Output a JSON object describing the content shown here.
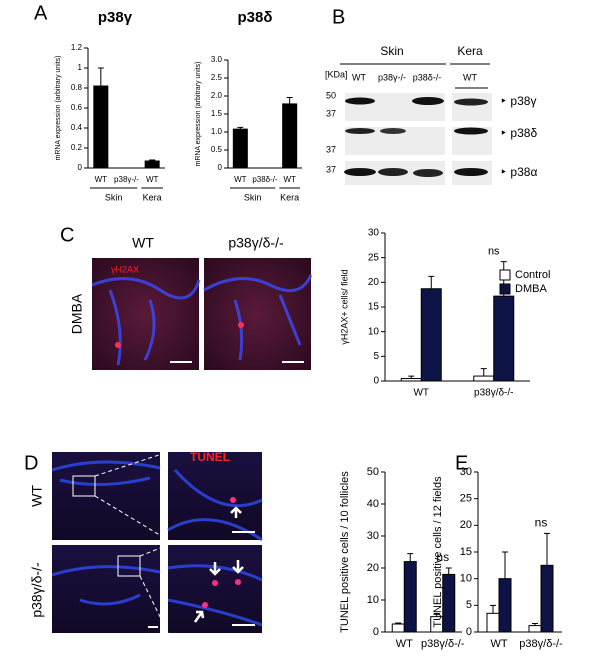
{
  "panels": {
    "a": "A",
    "b": "B",
    "c": "C",
    "d": "D",
    "e": "E"
  },
  "blot": {
    "groups": [
      "Skin",
      "Kera"
    ],
    "lanes": [
      "WT",
      "p38γ-/-",
      "p38δ-/-",
      "WT"
    ],
    "unit": "[KDa]",
    "markers": [
      "50",
      "37",
      "37",
      "37"
    ],
    "proteins": [
      "p38γ",
      "p38δ",
      "p38α"
    ]
  },
  "micrographs_c": {
    "columns": [
      "WT",
      "p38γ/δ-/-"
    ],
    "row": "DMBA",
    "stain": "γH2AX"
  },
  "micrographs_d": {
    "rows": [
      "WT",
      "p38γ/δ-/-"
    ],
    "stain": "TUNEL"
  },
  "chart_data": [
    {
      "type": "bar",
      "title": "p38γ",
      "ylabel": "mRNA expression (arbitrary units)",
      "categories": [
        "WT",
        "p38γ-/-",
        "WT"
      ],
      "group_labels": [
        "Skin",
        "Kera"
      ],
      "values": [
        0.82,
        0,
        0.07
      ],
      "errors": [
        0.18,
        0,
        0.01
      ],
      "color": "#000000",
      "ylim": [
        0,
        1.2
      ],
      "yticks": [
        0,
        0.2,
        0.4,
        0.6,
        0.8,
        1,
        1.2
      ]
    },
    {
      "type": "bar",
      "title": "p38δ",
      "ylabel": "mRNA expression (arbitrary units)",
      "categories": [
        "WT",
        "p38δ-/-",
        "WT"
      ],
      "group_labels": [
        "Skin",
        "Kera"
      ],
      "values": [
        1.08,
        0,
        1.78
      ],
      "errors": [
        0.05,
        0,
        0.18
      ],
      "color": "#000000",
      "ylim": [
        0,
        3
      ],
      "yticks": [
        0,
        0.5,
        {
          "value": 1,
          "label": "1.0"
        },
        1.5,
        {
          "value": 2,
          "label": "2.0"
        },
        2.5,
        {
          "value": 3,
          "label": "3.0"
        }
      ]
    },
    {
      "type": "bar",
      "ylabel": "γH2AX+ cells/ field",
      "categories": [
        "WT",
        "p38γ/δ-/-"
      ],
      "series": [
        {
          "name": "Control",
          "color": "#ffffff",
          "values": [
            0.5,
            1
          ],
          "errors": [
            0.5,
            1.5
          ]
        },
        {
          "name": "DMBA",
          "color": "#0d1445",
          "values": [
            18.7,
            17.2
          ],
          "errors": [
            2.5,
            7
          ]
        }
      ],
      "annotations": [
        "ns"
      ],
      "legend": "right",
      "ylim": [
        0,
        30
      ],
      "yticks": [
        0,
        5,
        10,
        15,
        20,
        25,
        30
      ]
    },
    {
      "type": "bar",
      "ylabel": "TUNEL positive cells / 10 follicles",
      "categories": [
        "WT",
        "p38γ/δ-/-"
      ],
      "series": [
        {
          "name": "Control",
          "color": "#ffffff",
          "values": [
            2.5,
            4.8
          ],
          "errors": [
            0.3,
            1
          ]
        },
        {
          "name": "DMBA",
          "color": "#0d1445",
          "values": [
            22,
            18
          ],
          "errors": [
            2.5,
            2
          ]
        }
      ],
      "annotations": [
        "ns"
      ],
      "ylim": [
        0,
        50
      ],
      "yticks": [
        0,
        10,
        20,
        30,
        40,
        50
      ]
    },
    {
      "type": "bar",
      "ylabel": "TUNEL positive cells / 12 fields",
      "categories": [
        "WT",
        "p38γ/δ-/-"
      ],
      "series": [
        {
          "name": "Control",
          "color": "#ffffff",
          "values": [
            3.5,
            1.2
          ],
          "errors": [
            1.5,
            0.4
          ]
        },
        {
          "name": "DMBA",
          "color": "#0d1445",
          "values": [
            10,
            12.5
          ],
          "errors": [
            5,
            6
          ]
        }
      ],
      "annotations": [
        "ns"
      ],
      "ylim": [
        0,
        30
      ],
      "yticks": [
        0,
        5,
        10,
        15,
        20,
        25,
        30
      ]
    }
  ]
}
